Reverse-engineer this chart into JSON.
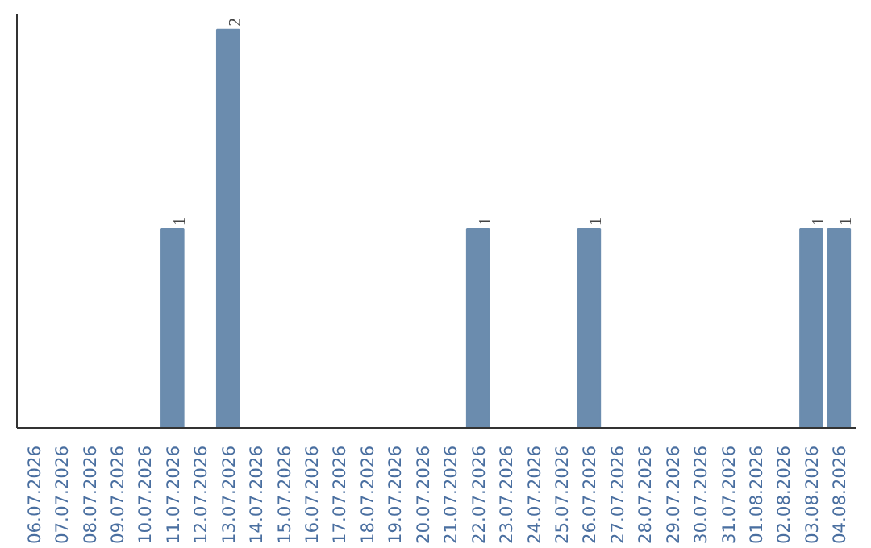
{
  "chart_data": {
    "type": "bar",
    "categories": [
      "06.07.2026",
      "07.07.2026",
      "08.07.2026",
      "09.07.2026",
      "10.07.2026",
      "11.07.2026",
      "12.07.2026",
      "13.07.2026",
      "14.07.2026",
      "15.07.2026",
      "16.07.2026",
      "17.07.2026",
      "18.07.2026",
      "19.07.2026",
      "20.07.2026",
      "21.07.2026",
      "22.07.2026",
      "23.07.2026",
      "24.07.2026",
      "25.07.2026",
      "26.07.2026",
      "27.07.2026",
      "28.07.2026",
      "29.07.2026",
      "30.07.2026",
      "31.07.2026",
      "01.08.2026",
      "02.08.2026",
      "03.08.2026",
      "04.08.2026"
    ],
    "values": [
      0,
      0,
      0,
      0,
      0,
      1,
      0,
      2,
      0,
      0,
      0,
      0,
      0,
      0,
      0,
      0,
      1,
      0,
      0,
      0,
      1,
      0,
      0,
      0,
      0,
      0,
      0,
      0,
      1,
      1
    ],
    "value_labels": [
      null,
      null,
      null,
      null,
      null,
      "1",
      null,
      "2",
      null,
      null,
      null,
      null,
      null,
      null,
      null,
      null,
      "1",
      null,
      null,
      null,
      "1",
      null,
      null,
      null,
      null,
      null,
      null,
      null,
      "1",
      "1"
    ],
    "color": "#6b8cae",
    "ylim": [
      0,
      2.08
    ],
    "tick_labels": "x"
  }
}
